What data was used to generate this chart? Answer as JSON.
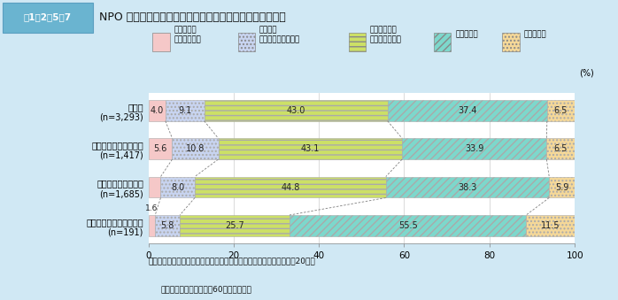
{
  "title_box_label": "図1－2－5－7",
  "title_text": "NPO 活動への関心の有無（近所の人たちとの交流の有無別",
  "categories": [
    "総　数\n(n=3,293)",
    "親しくつきあっている\n(n=1,417)",
    "あいさつをする程度\n(n=1,685)",
    "つきあいはほとんどない\n(n=191)"
  ],
  "series_labels": [
    "既に活動に\n参加している",
    "今後参加\nしたいと思っている",
    "関心があるが\nよく分からない",
    "関心はない",
    "わからない"
  ],
  "values": [
    [
      4.0,
      9.1,
      43.0,
      37.4,
      6.5
    ],
    [
      5.6,
      10.8,
      43.1,
      33.9,
      6.5
    ],
    [
      2.9,
      8.0,
      44.8,
      38.3,
      5.9
    ],
    [
      1.6,
      5.8,
      25.7,
      55.5,
      11.5
    ]
  ],
  "colors": [
    "#f5c8c8",
    "#c8d4f0",
    "#cce066",
    "#7dd8cc",
    "#f5d898"
  ],
  "hatch_patterns": [
    "",
    "....",
    "---",
    "////",
    "...."
  ],
  "xlim": [
    0,
    100
  ],
  "xticks": [
    0,
    20,
    40,
    60,
    80,
    100
  ],
  "background_color": "#d0e8f4",
  "chart_bg": "#ffffff",
  "footer_line1": "資料：内閣府「高齢者の地域社会への参加に関する意識調査」（平成20年）",
  "footer_line2": "（注）調査対象は、全国60歳以上の男女"
}
